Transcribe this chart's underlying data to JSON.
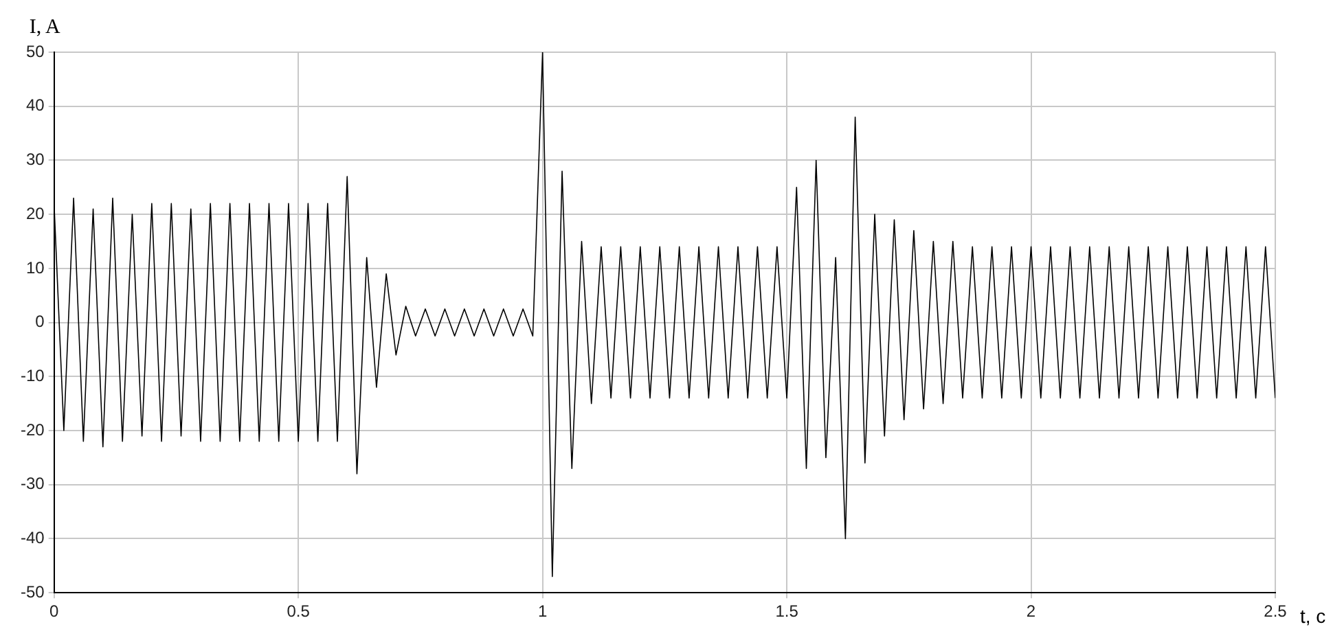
{
  "chart_data": {
    "type": "line",
    "xlabel": "t, c",
    "ylabel": "I, A",
    "x": [
      0,
      0.02,
      0.04,
      0.06,
      0.08,
      0.1,
      0.12,
      0.14,
      0.16,
      0.18,
      0.2,
      0.22,
      0.24,
      0.26,
      0.28,
      0.3,
      0.32,
      0.34,
      0.36,
      0.38,
      0.4,
      0.42,
      0.44,
      0.46,
      0.48,
      0.5,
      0.52,
      0.54,
      0.56,
      0.58,
      0.6,
      0.62,
      0.64,
      0.66,
      0.68,
      0.7,
      0.72,
      0.74,
      0.76,
      0.78,
      0.8,
      0.82,
      0.84,
      0.86,
      0.88,
      0.9,
      0.92,
      0.94,
      0.96,
      0.98,
      1,
      1.02,
      1.04,
      1.06,
      1.08,
      1.1,
      1.12,
      1.14,
      1.16,
      1.18,
      1.2,
      1.22,
      1.24,
      1.26,
      1.28,
      1.3,
      1.32,
      1.34,
      1.36,
      1.38,
      1.4,
      1.42,
      1.44,
      1.46,
      1.48,
      1.5,
      1.52,
      1.54,
      1.56,
      1.58,
      1.6,
      1.62,
      1.64,
      1.66,
      1.68,
      1.7,
      1.72,
      1.74,
      1.76,
      1.78,
      1.8,
      1.82,
      1.84,
      1.86,
      1.88,
      1.9,
      1.92,
      1.94,
      1.96,
      1.98,
      2,
      2.02,
      2.04,
      2.06,
      2.08,
      2.1,
      2.12,
      2.14,
      2.16,
      2.18,
      2.2,
      2.22,
      2.24,
      2.26,
      2.28,
      2.3,
      2.32,
      2.34,
      2.36,
      2.38,
      2.4,
      2.42,
      2.44,
      2.46,
      2.48,
      2.5
    ],
    "series": [
      {
        "color": "#000000",
        "values": [
          22,
          -20,
          23,
          -22,
          21,
          -23,
          23,
          -22,
          20,
          -21,
          22,
          -22,
          22,
          -21,
          21,
          -22,
          22,
          -22,
          22,
          -22,
          22,
          -22,
          22,
          -22,
          22,
          -22,
          22,
          -22,
          22,
          -22,
          27,
          -28,
          12,
          -12,
          9,
          -6,
          3,
          -2.5,
          2.5,
          -2.5,
          2.5,
          -2.5,
          2.5,
          -2.5,
          2.5,
          -2.5,
          2.5,
          -2.5,
          2.5,
          -2.5,
          50,
          -47,
          28,
          -27,
          15,
          -15,
          14,
          -14,
          14,
          -14,
          14,
          -14,
          14,
          -14,
          14,
          -14,
          14,
          -14,
          14,
          -14,
          14,
          -14,
          14,
          -14,
          14,
          -14,
          25,
          -27,
          30,
          -25,
          12,
          -40,
          38,
          -26,
          20,
          -21,
          19,
          -18,
          17,
          -16,
          15,
          -15,
          15,
          -14,
          14,
          -14,
          14,
          -14,
          14,
          -14,
          14,
          -14,
          14,
          -14,
          14,
          -14,
          14,
          -14,
          14,
          -14,
          14,
          -14,
          14,
          -14,
          14,
          -14,
          14,
          -14,
          14,
          -14,
          14,
          -14,
          14,
          -14,
          14,
          -14
        ]
      }
    ],
    "xlim": [
      0,
      2.5
    ],
    "xticks": [
      0,
      0.5,
      1,
      1.5,
      2,
      2.5
    ],
    "ylim": [
      -50,
      50
    ],
    "yticks": [
      -50,
      -40,
      -30,
      -20,
      -10,
      0,
      10,
      20,
      30,
      40,
      50
    ],
    "grid": true,
    "legend": false,
    "marker": "none",
    "line_style": "solid"
  }
}
